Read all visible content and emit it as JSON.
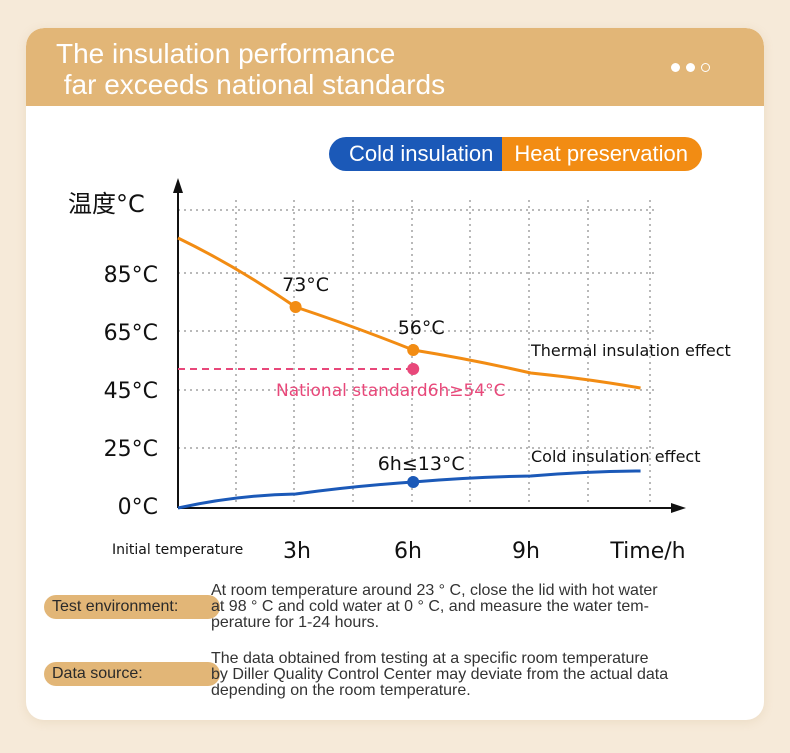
{
  "header": {
    "title": "The insulation performance\n far exceeds national standards"
  },
  "toggle": {
    "cold_label": "Cold insulation",
    "heat_label": "Heat preservation"
  },
  "colors": {
    "heat": "#f28c13",
    "cold": "#1b59b8",
    "standard": "#e8487a",
    "accent": "#e2b677"
  },
  "chart_data": {
    "type": "line",
    "ylabel": "温度°C",
    "xlabel": "Time/h",
    "x_ticks": [
      "Initial temperature",
      "3h",
      "6h",
      "9h"
    ],
    "y_ticks": [
      "85°C",
      "65°C",
      "45°C",
      "25°C",
      "0°C"
    ],
    "grid": true,
    "series": [
      {
        "name": "Thermal insulation effect",
        "color": "#f28c13",
        "x": [
          0,
          3,
          6,
          9,
          12
        ],
        "y": [
          98,
          73,
          56,
          50,
          46
        ],
        "marked_points": [
          {
            "x": 3,
            "y": 73,
            "label": "73°C"
          },
          {
            "x": 6,
            "y": 56,
            "label": "56°C"
          }
        ]
      },
      {
        "name": "Cold insulation effect",
        "color": "#1b59b8",
        "x": [
          0,
          3,
          6,
          9,
          12
        ],
        "y": [
          0,
          5.5,
          9,
          11.5,
          13
        ],
        "marked_points": [
          {
            "x": 6,
            "y": 9,
            "label": "6h≤13°C"
          }
        ]
      }
    ],
    "reference_line": {
      "label": "National standard6h≥54°C",
      "y": 54,
      "x_end": 6,
      "color": "#e8487a"
    }
  },
  "notes": [
    {
      "label": "Test environment:",
      "lines": [
        "At room temperature around 23 ° C, close the lid with hot water",
        "at 98 ° C and cold water at 0 ° C, and measure the water tem-",
        "perature for 1-24 hours."
      ]
    },
    {
      "label": "Data source:",
      "lines": [
        "The data obtained from testing at a specific room temperature",
        "by Diller Quality Control Center may deviate from the actual data",
        "depending on the room temperature."
      ]
    }
  ]
}
